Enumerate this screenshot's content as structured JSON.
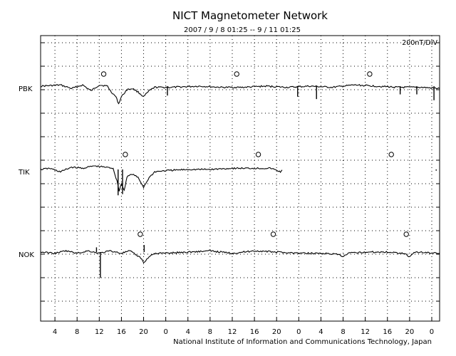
{
  "title": "NICT Magnetometer Network",
  "subtitle": "2007 / 9 / 8   01:25 --  9 / 11   01:25",
  "scale_label": "200nT/DIV",
  "footer": "National Institute of Information and Communications Technology, Japan",
  "chart_data": {
    "type": "line",
    "title": "NICT Magnetometer Network",
    "subtitle": "2007 / 9 / 8   01:25 --  9 / 11   01:25",
    "scale": "200nT/DIV",
    "x_unit": "hour (UT), 3 days from 2007/9/8 01:25",
    "x_range": [
      1.4167,
      73.4167
    ],
    "x_ticks": [
      {
        "x": 4,
        "label": "4"
      },
      {
        "x": 8,
        "label": "8"
      },
      {
        "x": 12,
        "label": "12"
      },
      {
        "x": 16,
        "label": "16"
      },
      {
        "x": 20,
        "label": "20"
      },
      {
        "x": 24,
        "label": "0"
      },
      {
        "x": 28,
        "label": "4"
      },
      {
        "x": 32,
        "label": "8"
      },
      {
        "x": 36,
        "label": "12"
      },
      {
        "x": 40,
        "label": "16"
      },
      {
        "x": 44,
        "label": "20"
      },
      {
        "x": 48,
        "label": "0"
      },
      {
        "x": 52,
        "label": "4"
      },
      {
        "x": 56,
        "label": "8"
      },
      {
        "x": 60,
        "label": "12"
      },
      {
        "x": 64,
        "label": "16"
      },
      {
        "x": 68,
        "label": "20"
      },
      {
        "x": 72,
        "label": "0"
      }
    ],
    "series": [
      {
        "name": "PBK",
        "midnight_markers": [
          12.8,
          36.8,
          60.8
        ],
        "points": [
          [
            1.4,
            0
          ],
          [
            5.0,
            0.05
          ],
          [
            7.0,
            -0.1
          ],
          [
            9.0,
            0.05
          ],
          [
            10.5,
            -0.2
          ],
          [
            12.0,
            0.05
          ],
          [
            13.5,
            0
          ],
          [
            14.0,
            -0.2
          ],
          [
            15.0,
            -0.45
          ],
          [
            15.5,
            -0.75
          ],
          [
            16.0,
            -0.45
          ],
          [
            17.0,
            -0.15
          ],
          [
            18.0,
            -0.1
          ],
          [
            19.0,
            -0.25
          ],
          [
            20.0,
            -0.45
          ],
          [
            21.0,
            -0.2
          ],
          [
            22.0,
            -0.05
          ],
          [
            25.0,
            -0.05
          ],
          [
            30.0,
            0
          ],
          [
            34.0,
            -0.05
          ],
          [
            38.0,
            -0.05
          ],
          [
            42.0,
            0
          ],
          [
            46.0,
            -0.05
          ],
          [
            50.0,
            0
          ],
          [
            54.0,
            -0.05
          ],
          [
            58.0,
            0.05
          ],
          [
            62.0,
            0
          ],
          [
            66.0,
            -0.05
          ],
          [
            70.0,
            -0.05
          ],
          [
            73.4,
            -0.1
          ]
        ],
        "spikes": [
          [
            24.3,
            -0.4
          ],
          [
            47.8,
            -0.45
          ],
          [
            51.2,
            -0.55
          ],
          [
            66.3,
            -0.35
          ],
          [
            69.3,
            -0.35
          ],
          [
            72.4,
            -0.6
          ]
        ]
      },
      {
        "name": "TIK",
        "midnight_markers": [
          16.7,
          40.7,
          64.7
        ],
        "points": [
          [
            1.4,
            0
          ],
          [
            3.0,
            0.05
          ],
          [
            5.0,
            -0.1
          ],
          [
            7.0,
            0.1
          ],
          [
            9.0,
            0.05
          ],
          [
            11.0,
            0.15
          ],
          [
            13.0,
            0.1
          ],
          [
            14.5,
            0.05
          ],
          [
            15.2,
            -0.5
          ],
          [
            15.6,
            -0.9
          ],
          [
            16.0,
            -0.6
          ],
          [
            16.5,
            -0.9
          ],
          [
            17.0,
            -0.3
          ],
          [
            18.0,
            -0.2
          ],
          [
            19.0,
            -0.35
          ],
          [
            20.0,
            -0.75
          ],
          [
            21.0,
            -0.35
          ],
          [
            22.0,
            -0.1
          ],
          [
            24.0,
            -0.05
          ],
          [
            28.0,
            0
          ],
          [
            32.0,
            0
          ],
          [
            36.0,
            0.05
          ],
          [
            40.0,
            0.05
          ],
          [
            43.0,
            0.05
          ],
          [
            44.7,
            -0.1
          ],
          [
            45.0,
            -0.02
          ]
        ],
        "spikes": [
          [
            15.4,
            -1.1
          ],
          [
            16.2,
            -1.05
          ],
          [
            72.8,
            -0.05
          ]
        ]
      },
      {
        "name": "NOK",
        "midnight_markers": [
          19.4,
          43.4,
          67.4
        ],
        "points": [
          [
            1.4,
            0
          ],
          [
            4.0,
            -0.05
          ],
          [
            6.0,
            0.05
          ],
          [
            8.0,
            -0.05
          ],
          [
            10.0,
            0.05
          ],
          [
            12.0,
            -0.05
          ],
          [
            14.0,
            0.05
          ],
          [
            16.0,
            -0.05
          ],
          [
            17.5,
            0.05
          ],
          [
            18.5,
            -0.1
          ],
          [
            19.5,
            -0.25
          ],
          [
            20.0,
            -0.45
          ],
          [
            21.0,
            -0.2
          ],
          [
            22.0,
            -0.05
          ],
          [
            24.0,
            -0.05
          ],
          [
            28.0,
            0
          ],
          [
            32.0,
            0.05
          ],
          [
            36.0,
            -0.05
          ],
          [
            40.0,
            0.05
          ],
          [
            44.0,
            0
          ],
          [
            48.0,
            -0.05
          ],
          [
            52.0,
            -0.05
          ],
          [
            55.0,
            -0.1
          ],
          [
            56.0,
            -0.2
          ],
          [
            57.0,
            -0.05
          ],
          [
            60.0,
            0
          ],
          [
            64.0,
            0
          ],
          [
            67.0,
            -0.05
          ],
          [
            68.0,
            -0.2
          ],
          [
            69.0,
            0
          ],
          [
            73.4,
            -0.05
          ]
        ],
        "spikes": [
          [
            12.2,
            -1.1
          ],
          [
            11.5,
            0.2
          ],
          [
            20.1,
            0.3
          ]
        ]
      }
    ]
  }
}
